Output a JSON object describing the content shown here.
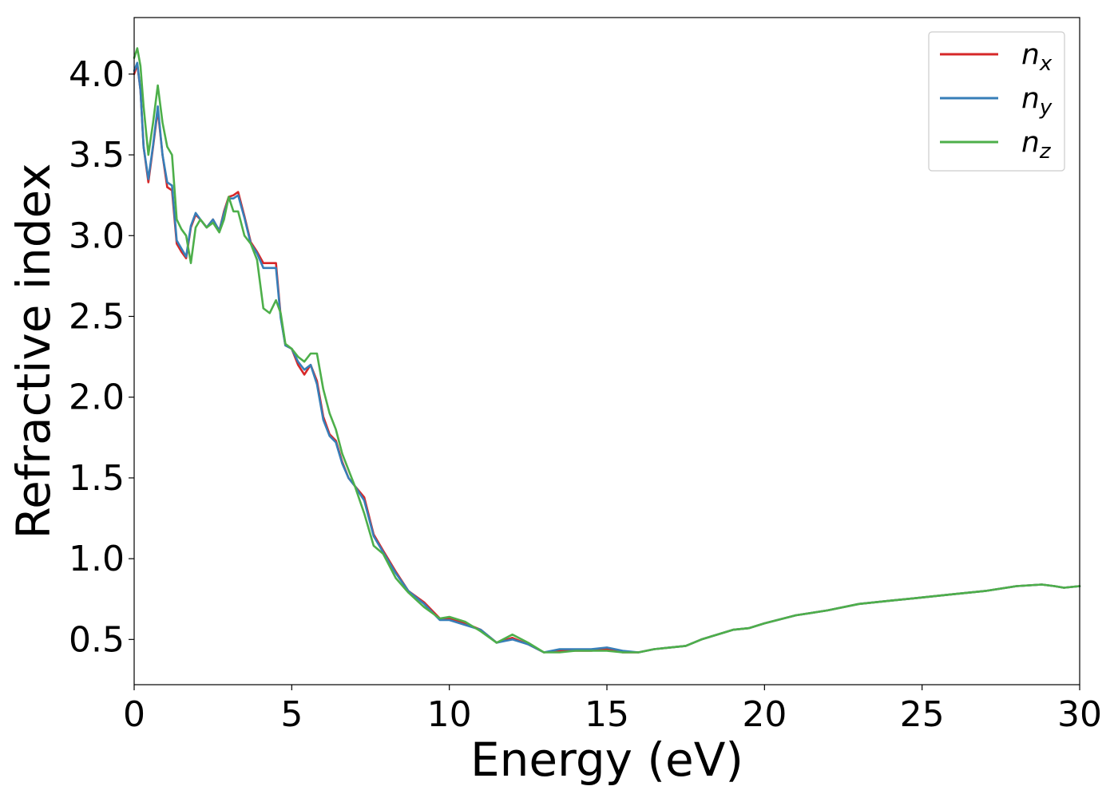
{
  "chart_data": {
    "type": "line",
    "title": "",
    "xlabel": "Energy (eV)",
    "ylabel": "Refractive index",
    "xlim": [
      0,
      30
    ],
    "ylim": [
      0.22,
      4.35
    ],
    "xticks": [
      0,
      5,
      10,
      15,
      20,
      25,
      30
    ],
    "xtick_labels": [
      "0",
      "5",
      "10",
      "15",
      "20",
      "25",
      "30"
    ],
    "yticks": [
      0.5,
      1.0,
      1.5,
      2.0,
      2.5,
      3.0,
      3.5,
      4.0
    ],
    "ytick_labels": [
      "0.5",
      "1.0",
      "1.5",
      "2.0",
      "2.5",
      "3.0",
      "3.5",
      "4.0"
    ],
    "grid": false,
    "legend": {
      "position": "top-right"
    },
    "series": [
      {
        "name": "n_x",
        "label_main": "n",
        "label_sub": "x",
        "color": "#d62728",
        "x": [
          0,
          0.1,
          0.2,
          0.3,
          0.45,
          0.6,
          0.75,
          0.9,
          1.05,
          1.2,
          1.35,
          1.5,
          1.65,
          1.8,
          1.95,
          2.1,
          2.3,
          2.5,
          2.7,
          2.85,
          3.0,
          3.15,
          3.3,
          3.5,
          3.7,
          3.9,
          4.1,
          4.3,
          4.5,
          4.65,
          4.8,
          5.0,
          5.2,
          5.4,
          5.6,
          5.8,
          6.0,
          6.2,
          6.4,
          6.6,
          6.8,
          7.0,
          7.3,
          7.6,
          7.9,
          8.3,
          8.7,
          9.2,
          9.7,
          10.0,
          10.5,
          11.0,
          11.5,
          12.0,
          12.5,
          13.0,
          13.5,
          14.0,
          14.5,
          15.0,
          15.5,
          16.0,
          16.5,
          17.0,
          17.5,
          18.0,
          18.5,
          19.0,
          19.5,
          20.0,
          21.0,
          22.0,
          23.0,
          24.0,
          25.0,
          26.0,
          27.0,
          28.0,
          28.8,
          29.2,
          29.5,
          30.0
        ],
        "values": [
          4.0,
          4.06,
          3.9,
          3.55,
          3.33,
          3.55,
          3.78,
          3.5,
          3.3,
          3.28,
          2.95,
          2.9,
          2.86,
          3.05,
          3.13,
          3.1,
          3.05,
          3.1,
          3.03,
          3.15,
          3.24,
          3.25,
          3.27,
          3.12,
          2.96,
          2.9,
          2.83,
          2.83,
          2.83,
          2.5,
          2.32,
          2.3,
          2.2,
          2.14,
          2.2,
          2.1,
          1.88,
          1.77,
          1.73,
          1.6,
          1.5,
          1.45,
          1.38,
          1.15,
          1.05,
          0.92,
          0.8,
          0.73,
          0.63,
          0.63,
          0.6,
          0.56,
          0.48,
          0.51,
          0.47,
          0.42,
          0.43,
          0.43,
          0.43,
          0.44,
          0.42,
          0.42,
          0.44,
          0.45,
          0.46,
          0.5,
          0.53,
          0.56,
          0.57,
          0.6,
          0.65,
          0.68,
          0.72,
          0.74,
          0.76,
          0.78,
          0.8,
          0.83,
          0.84,
          0.83,
          0.82,
          0.83
        ]
      },
      {
        "name": "n_y",
        "label_main": "n",
        "label_sub": "y",
        "color": "#377eb8",
        "x": [
          0,
          0.1,
          0.2,
          0.3,
          0.45,
          0.6,
          0.75,
          0.9,
          1.05,
          1.2,
          1.35,
          1.5,
          1.65,
          1.8,
          1.95,
          2.1,
          2.3,
          2.5,
          2.7,
          2.85,
          3.0,
          3.15,
          3.3,
          3.5,
          3.7,
          3.9,
          4.1,
          4.3,
          4.5,
          4.65,
          4.8,
          5.0,
          5.2,
          5.4,
          5.6,
          5.8,
          6.0,
          6.2,
          6.4,
          6.6,
          6.8,
          7.0,
          7.3,
          7.6,
          7.9,
          8.3,
          8.7,
          9.2,
          9.7,
          10.0,
          10.5,
          11.0,
          11.5,
          12.0,
          12.5,
          13.0,
          13.5,
          14.0,
          14.5,
          15.0,
          15.5,
          16.0,
          16.5,
          17.0,
          17.5,
          18.0,
          18.5,
          19.0,
          19.5,
          20.0,
          21.0,
          22.0,
          23.0,
          24.0,
          25.0,
          26.0,
          27.0,
          28.0,
          28.8,
          29.2,
          29.5,
          30.0
        ],
        "values": [
          4.02,
          4.07,
          3.9,
          3.55,
          3.35,
          3.56,
          3.8,
          3.5,
          3.33,
          3.31,
          2.97,
          2.92,
          2.87,
          3.06,
          3.14,
          3.1,
          3.05,
          3.1,
          3.03,
          3.14,
          3.23,
          3.23,
          3.25,
          3.11,
          2.95,
          2.89,
          2.8,
          2.8,
          2.8,
          2.49,
          2.32,
          2.3,
          2.22,
          2.17,
          2.2,
          2.08,
          1.86,
          1.76,
          1.72,
          1.59,
          1.5,
          1.45,
          1.36,
          1.14,
          1.04,
          0.91,
          0.8,
          0.72,
          0.62,
          0.62,
          0.59,
          0.56,
          0.48,
          0.5,
          0.47,
          0.42,
          0.44,
          0.44,
          0.44,
          0.45,
          0.43,
          0.42,
          0.44,
          0.45,
          0.46,
          0.5,
          0.53,
          0.56,
          0.57,
          0.6,
          0.65,
          0.68,
          0.72,
          0.74,
          0.76,
          0.78,
          0.8,
          0.83,
          0.84,
          0.83,
          0.82,
          0.83
        ]
      },
      {
        "name": "n_z",
        "label_main": "n",
        "label_sub": "z",
        "color": "#4daf4a",
        "x": [
          0,
          0.1,
          0.2,
          0.3,
          0.45,
          0.6,
          0.75,
          0.9,
          1.05,
          1.2,
          1.35,
          1.5,
          1.65,
          1.8,
          1.95,
          2.1,
          2.3,
          2.5,
          2.7,
          2.85,
          3.0,
          3.15,
          3.3,
          3.5,
          3.7,
          3.9,
          4.1,
          4.3,
          4.5,
          4.65,
          4.8,
          5.0,
          5.2,
          5.4,
          5.6,
          5.8,
          6.0,
          6.2,
          6.4,
          6.6,
          6.8,
          7.0,
          7.3,
          7.6,
          7.9,
          8.3,
          8.7,
          9.2,
          9.7,
          10.0,
          10.5,
          11.0,
          11.5,
          12.0,
          12.5,
          13.0,
          13.5,
          14.0,
          14.5,
          15.0,
          15.5,
          16.0,
          16.5,
          17.0,
          17.5,
          18.0,
          18.5,
          19.0,
          19.5,
          20.0,
          21.0,
          22.0,
          23.0,
          24.0,
          25.0,
          26.0,
          27.0,
          28.0,
          28.8,
          29.2,
          29.5,
          30.0
        ],
        "values": [
          4.1,
          4.16,
          4.05,
          3.8,
          3.5,
          3.7,
          3.93,
          3.7,
          3.55,
          3.5,
          3.1,
          3.04,
          3.0,
          2.83,
          3.05,
          3.1,
          3.05,
          3.08,
          3.02,
          3.1,
          3.24,
          3.15,
          3.15,
          3.0,
          2.95,
          2.85,
          2.55,
          2.52,
          2.6,
          2.52,
          2.33,
          2.3,
          2.25,
          2.22,
          2.27,
          2.27,
          2.05,
          1.9,
          1.8,
          1.65,
          1.55,
          1.45,
          1.28,
          1.08,
          1.03,
          0.88,
          0.79,
          0.7,
          0.63,
          0.64,
          0.61,
          0.55,
          0.48,
          0.53,
          0.48,
          0.42,
          0.42,
          0.43,
          0.43,
          0.43,
          0.42,
          0.42,
          0.44,
          0.45,
          0.46,
          0.5,
          0.53,
          0.56,
          0.57,
          0.6,
          0.65,
          0.68,
          0.72,
          0.74,
          0.76,
          0.78,
          0.8,
          0.83,
          0.84,
          0.83,
          0.82,
          0.83
        ]
      }
    ]
  }
}
